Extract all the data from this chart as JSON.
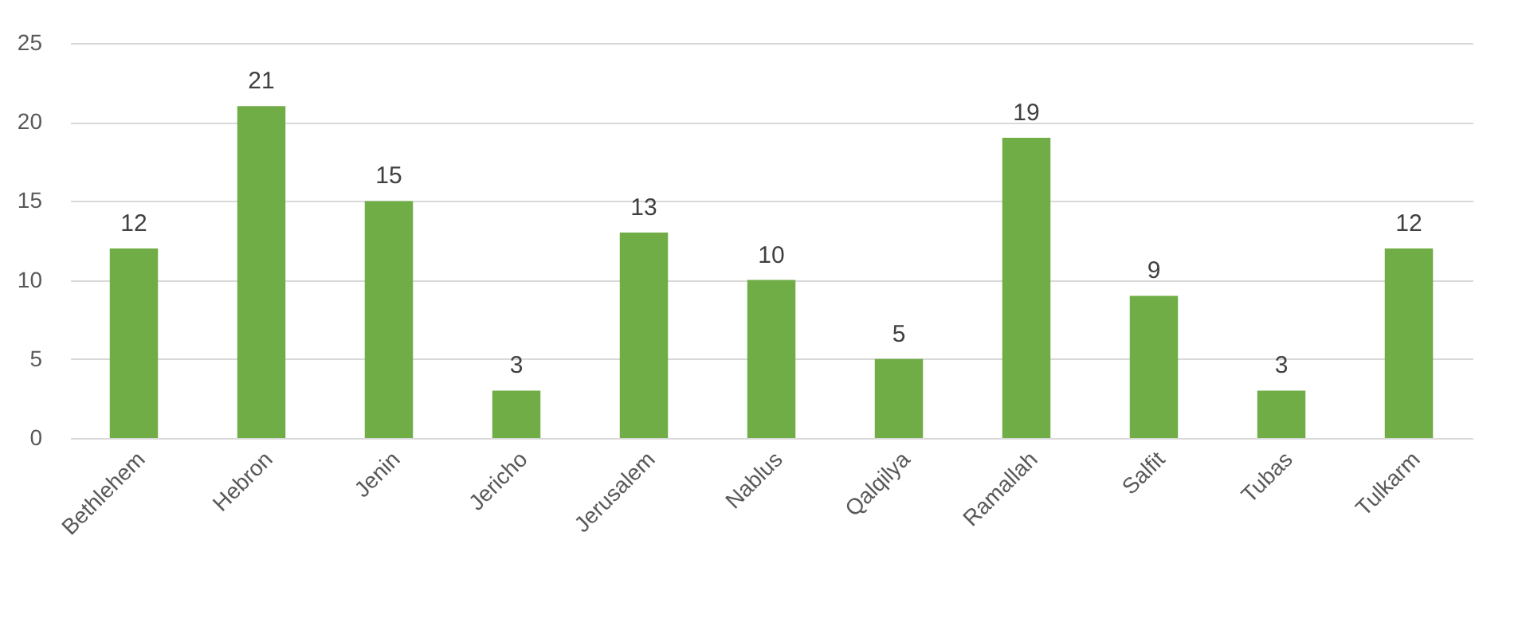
{
  "chart_data": {
    "type": "bar",
    "categories": [
      "Bethlehem",
      "Hebron",
      "Jenin",
      "Jericho",
      "Jerusalem",
      "Nablus",
      "Qalqilya",
      "Ramallah",
      "Salfit",
      "Tubas",
      "Tulkarm"
    ],
    "values": [
      12,
      21,
      15,
      3,
      13,
      10,
      5,
      19,
      9,
      3,
      12
    ],
    "color": "#70ad47",
    "ylim": [
      0,
      25
    ],
    "yticks": [
      0,
      5,
      10,
      15,
      20,
      25
    ],
    "grid": "y",
    "data_labels": true
  }
}
